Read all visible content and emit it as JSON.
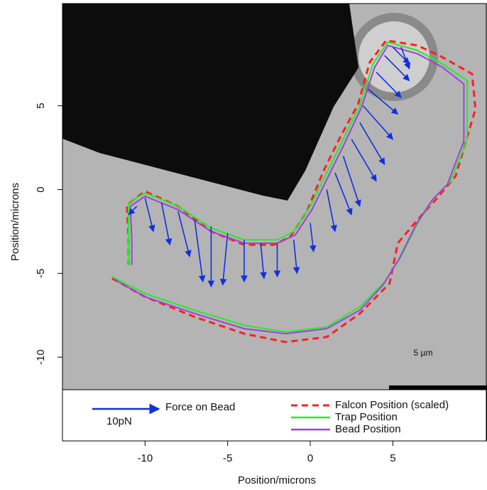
{
  "chart_data": {
    "type": "line",
    "xlabel": "Position/microns",
    "ylabel": "Position/microns",
    "xlim": [
      -15,
      10.7
    ],
    "ylim": [
      -15,
      11.1
    ],
    "xticks": [
      -10,
      -5,
      0,
      5
    ],
    "yticks": [
      -10,
      -5,
      0,
      5
    ],
    "scale_bar_label": "5 µm",
    "series": [
      {
        "name": "Falcon Position (scaled)",
        "color": "#ff2020",
        "dashed": true,
        "x": [
          -12,
          -10,
          -7,
          -4,
          -1.5,
          1,
          3,
          4.8,
          5.3,
          6.5,
          7.6,
          8.8,
          10,
          9.8,
          8,
          6.5,
          4.6,
          3.6,
          2.9,
          1.8,
          0.8,
          -0.2,
          -1.2,
          -2.2,
          -4,
          -6,
          -8,
          -10,
          -11.1,
          -11,
          -11
        ],
        "values": [
          -5.3,
          -6.4,
          -7.6,
          -8.6,
          -9.1,
          -8.8,
          -7.4,
          -5.6,
          -3.2,
          -1.8,
          -0.6,
          0.8,
          4.8,
          6.9,
          7.9,
          8.6,
          8.9,
          7.6,
          5.1,
          3.1,
          1.1,
          -1.3,
          -2.8,
          -3.3,
          -3.3,
          -2.5,
          -1,
          -0.1,
          -0.9,
          -3,
          -4.5
        ]
      },
      {
        "name": "Trap Position",
        "color": "#22ee22",
        "dashed": false,
        "x": [
          -12,
          -10,
          -7,
          -4,
          -1.5,
          1,
          3,
          4.5,
          5.5,
          6.5,
          7.5,
          8.5,
          9.5,
          9.5,
          8,
          6.5,
          4.7,
          3.8,
          3,
          2,
          1,
          0,
          -1,
          -2,
          -4,
          -6,
          -8,
          -10,
          -11,
          -11,
          -11
        ],
        "values": [
          -5.2,
          -6.2,
          -7.2,
          -8.1,
          -8.5,
          -8.2,
          -7,
          -5.5,
          -4,
          -2,
          -0.5,
          0.5,
          3,
          6.5,
          7.5,
          8.3,
          8.8,
          7.5,
          5,
          3,
          1,
          -1,
          -2.5,
          -3,
          -3,
          -2.3,
          -1,
          -0.2,
          -0.8,
          -3,
          -4.5
        ]
      },
      {
        "name": "Bead Position",
        "color": "#a040e0",
        "dashed": false,
        "x": [
          -11.8,
          -10,
          -7,
          -4,
          -1.5,
          1,
          3,
          4.4,
          5.4,
          6.4,
          7.4,
          8.3,
          9.3,
          9.3,
          8,
          6.5,
          4.7,
          3.9,
          3.1,
          2.1,
          1.1,
          0.1,
          -0.9,
          -2,
          -4,
          -6,
          -8,
          -10,
          -10.9,
          -10.8,
          -10.8
        ],
        "values": [
          -5.4,
          -6.4,
          -7.4,
          -8.3,
          -8.6,
          -8.3,
          -7.2,
          -5.7,
          -4.1,
          -2.1,
          -0.6,
          0.3,
          2.9,
          6.3,
          7.3,
          8.1,
          8.6,
          7.3,
          4.9,
          2.8,
          0.8,
          -1.2,
          -2.7,
          -3.2,
          -3.2,
          -2.5,
          -1.2,
          -0.4,
          -1,
          -3,
          -4.5
        ]
      }
    ],
    "force": {
      "name": "Force on Bead",
      "scale_label": "10pN",
      "color": "#1030e0",
      "x": [
        -10.5,
        -10,
        -9,
        -8,
        -7,
        -6,
        -5,
        -4,
        -3,
        -2,
        -1,
        0,
        1,
        1.5,
        2,
        2.5,
        3,
        3.2,
        3.5,
        4,
        4.5,
        5,
        5.5
      ],
      "y": [
        -1,
        -0.5,
        -0.8,
        -1.3,
        -1.8,
        -2.2,
        -2.6,
        -3,
        -3.2,
        -3.2,
        -3,
        -2,
        0,
        1,
        2,
        3,
        4,
        5,
        6,
        7,
        8,
        8.5,
        8.5
      ],
      "dx": [
        -0.5,
        0.5,
        0.5,
        0.7,
        0.5,
        0,
        -0.3,
        0,
        0.2,
        0,
        0.2,
        0.2,
        0.5,
        1,
        1,
        1.5,
        1.5,
        1.8,
        1.8,
        1.5,
        1.5,
        1,
        0.5
      ],
      "dy": [
        -0.5,
        -2,
        -2.5,
        -2.7,
        -3.7,
        -3.6,
        -3.1,
        -2.5,
        -2.1,
        -2,
        -2,
        -1.7,
        -2.5,
        -2.5,
        -3,
        -2.5,
        -2.5,
        -2,
        -1.5,
        -1.5,
        -1.5,
        -1,
        -1.3
      ]
    }
  }
}
